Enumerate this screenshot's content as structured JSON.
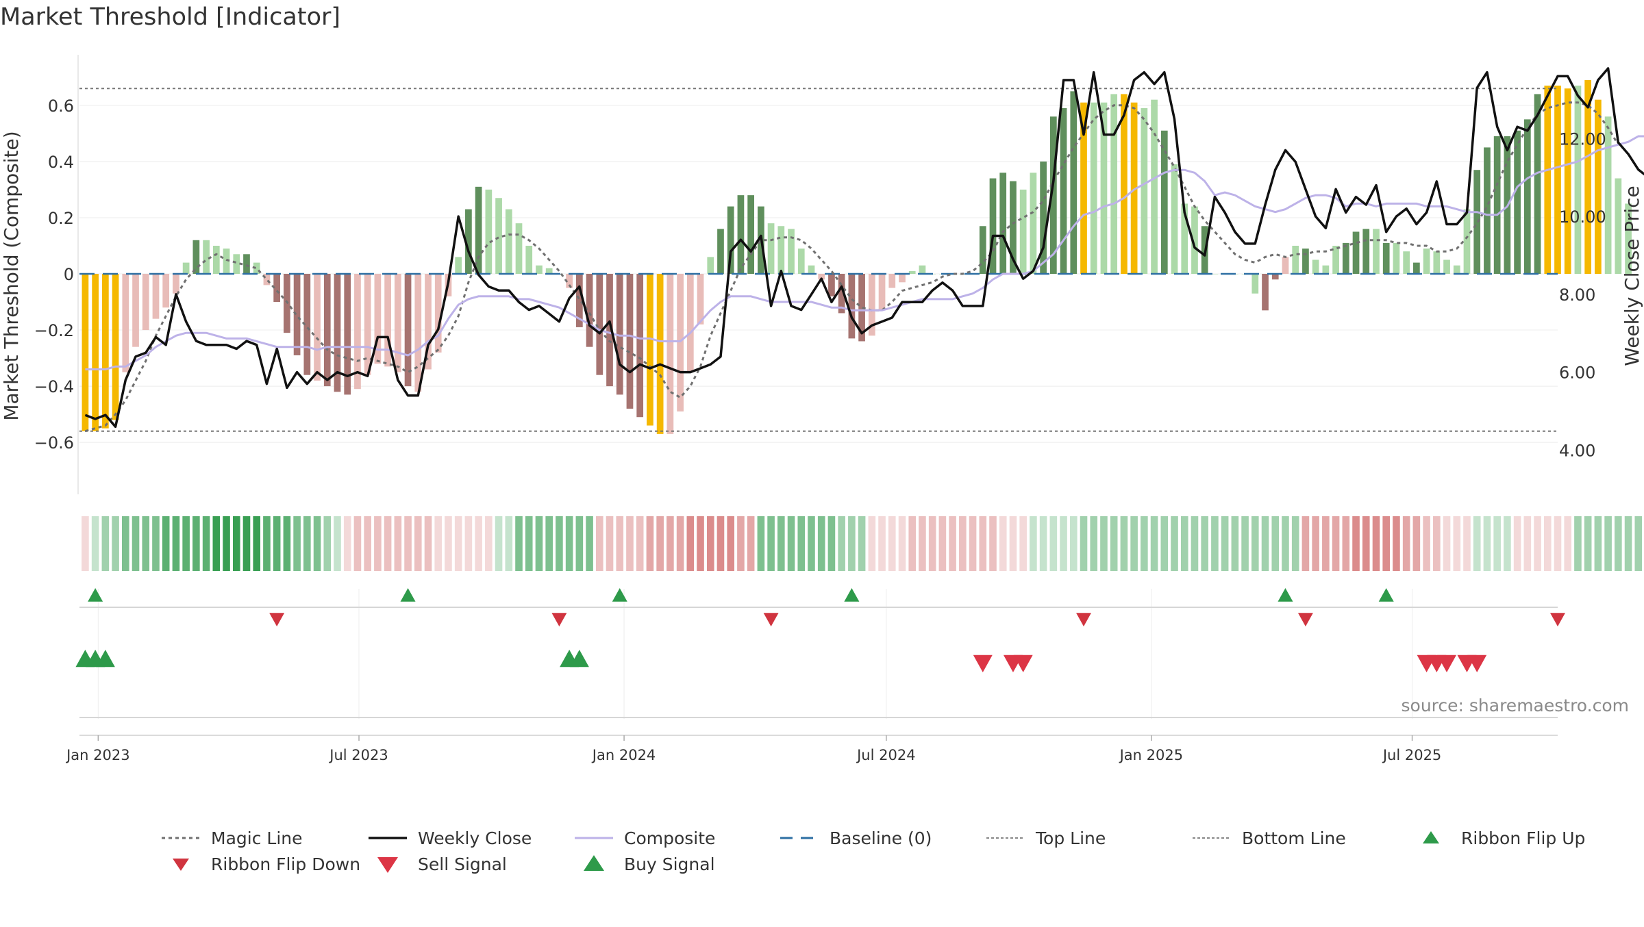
{
  "title": "Market Threshold [Indicator]",
  "source_text": "source: sharemaestro.com",
  "colors": {
    "gold": "#f5b800",
    "strong_green": "#5f8f5c",
    "light_green": "#acd9a8",
    "strong_red": "#a67370",
    "light_red": "#e8bcb8",
    "close_line": "#111111",
    "composite_line": "#bdb2e8",
    "magic_line": "#707070",
    "baseline": "#2d6fa3",
    "buy": "#2e9a4a",
    "sell": "#dc3545",
    "flip_up": "#2e9a4a",
    "flip_down": "#d0343f"
  },
  "chart_data": {
    "type": "bar",
    "title": "Market Threshold [Indicator]",
    "ylabel": "Market Threshold (Composite)",
    "y2label": "Weekly Close Price",
    "ylim": [
      -0.78,
      0.78
    ],
    "y2lim": [
      2.9,
      14.15
    ],
    "yticks": [
      -0.6,
      -0.4,
      -0.2,
      0,
      0.2,
      0.4,
      0.6
    ],
    "ytick_labels": [
      "−0.6",
      "−0.4",
      "−0.2",
      "0",
      "0.2",
      "0.4",
      "0.6"
    ],
    "y2ticks": [
      4,
      6,
      8,
      10,
      12
    ],
    "y2tick_labels": [
      "4.00",
      "6.00",
      "8.00",
      "10.00",
      "12.00"
    ],
    "xlim": [
      "2022-12-19",
      "2025-10-10"
    ],
    "xticks": [
      "2023-01-01",
      "2023-07-01",
      "2024-01-01",
      "2024-07-01",
      "2025-01-01",
      "2025-07-01"
    ],
    "xtick_labels": [
      "Jan 2023",
      "Jul 2023",
      "Jan 2024",
      "Jul 2024",
      "Jan 2025",
      "Jul 2025"
    ],
    "start_date": "2022-12-23",
    "top_line": 0.66,
    "bottom_line": -0.56,
    "baseline": 0,
    "legend": [
      {
        "label": "Magic Line",
        "style": "dotted-grey"
      },
      {
        "label": "Weekly Close",
        "style": "solid-black"
      },
      {
        "label": "Composite",
        "style": "solid-lavender"
      },
      {
        "label": "Baseline (0)",
        "style": "dashed-blue"
      },
      {
        "label": "Top Line",
        "style": "dashed-grey"
      },
      {
        "label": "Bottom Line",
        "style": "dashed-grey"
      },
      {
        "label": "Ribbon Flip Up",
        "style": "triangle-up-green"
      },
      {
        "label": "Ribbon Flip Down",
        "style": "triangle-down-red"
      },
      {
        "label": "Sell Signal",
        "style": "triangle-down-red-large"
      },
      {
        "label": "Buy Signal",
        "style": "triangle-up-green-large"
      }
    ],
    "legend_position": "bottom",
    "histogram": [
      -0.56,
      -0.56,
      -0.55,
      -0.52,
      -0.35,
      -0.26,
      -0.2,
      -0.16,
      -0.12,
      -0.07,
      0.04,
      0.12,
      0.12,
      0.1,
      0.09,
      0.07,
      0.07,
      0.04,
      -0.04,
      -0.1,
      -0.21,
      -0.29,
      -0.36,
      -0.38,
      -0.4,
      -0.42,
      -0.43,
      -0.41,
      -0.36,
      -0.32,
      -0.33,
      -0.35,
      -0.4,
      -0.42,
      -0.34,
      -0.28,
      -0.08,
      0.06,
      0.23,
      0.31,
      0.3,
      0.27,
      0.23,
      0.18,
      0.1,
      0.03,
      0.02,
      0.0,
      -0.05,
      -0.19,
      -0.26,
      -0.36,
      -0.4,
      -0.43,
      -0.48,
      -0.51,
      -0.54,
      -0.57,
      -0.57,
      -0.49,
      -0.35,
      -0.18,
      0.06,
      0.16,
      0.24,
      0.28,
      0.28,
      0.24,
      0.18,
      0.17,
      0.16,
      0.09,
      0.03,
      -0.02,
      -0.08,
      -0.14,
      -0.23,
      -0.24,
      -0.22,
      -0.13,
      -0.05,
      -0.03,
      0.01,
      0.03,
      0.0,
      0.0,
      0.0,
      0.0,
      0.0,
      0.17,
      0.34,
      0.36,
      0.33,
      0.3,
      0.36,
      0.4,
      0.56,
      0.59,
      0.65,
      0.61,
      0.61,
      0.61,
      0.64,
      0.64,
      0.61,
      0.59,
      0.62,
      0.51,
      0.39,
      0.25,
      0.24,
      0.17,
      0.0,
      0.0,
      0.0,
      0.0,
      -0.07,
      -0.13,
      -0.02,
      0.06,
      0.1,
      0.09,
      0.05,
      0.03,
      0.1,
      0.11,
      0.15,
      0.16,
      0.16,
      0.11,
      0.11,
      0.08,
      0.04,
      0.09,
      0.08,
      0.05,
      0.03,
      0.23,
      0.37,
      0.45,
      0.49,
      0.49,
      0.51,
      0.55,
      0.64,
      0.67,
      0.67,
      0.66,
      0.67,
      0.69,
      0.62,
      0.56,
      0.34,
      0.25
    ],
    "hist_colors": [
      "gold",
      "gold",
      "gold",
      "gold",
      "light_red",
      "light_red",
      "light_red",
      "light_red",
      "light_red",
      "light_red",
      "light_green",
      "strong_green",
      "light_green",
      "light_green",
      "light_green",
      "light_green",
      "strong_green",
      "light_green",
      "light_red",
      "strong_red",
      "strong_red",
      "strong_red",
      "strong_red",
      "light_red",
      "strong_red",
      "strong_red",
      "strong_red",
      "light_red",
      "light_red",
      "light_red",
      "light_red",
      "light_red",
      "strong_red",
      "light_red",
      "light_red",
      "light_red",
      "light_red",
      "light_green",
      "strong_green",
      "strong_green",
      "light_green",
      "light_green",
      "light_green",
      "light_green",
      "light_green",
      "light_green",
      "light_green",
      "light_green",
      "light_red",
      "strong_red",
      "strong_red",
      "strong_red",
      "strong_red",
      "strong_red",
      "strong_red",
      "strong_red",
      "gold",
      "gold",
      "light_red",
      "light_red",
      "light_red",
      "light_red",
      "light_green",
      "strong_green",
      "strong_green",
      "strong_green",
      "strong_green",
      "strong_green",
      "light_green",
      "light_green",
      "light_green",
      "light_green",
      "light_green",
      "light_red",
      "strong_red",
      "strong_red",
      "strong_red",
      "strong_red",
      "light_red",
      "light_red",
      "light_red",
      "light_red",
      "light_green",
      "light_green",
      "light_green",
      "light_green",
      "light_green",
      "light_green",
      "light_green",
      "strong_green",
      "strong_green",
      "strong_green",
      "strong_green",
      "light_green",
      "light_green",
      "strong_green",
      "strong_green",
      "strong_green",
      "strong_green",
      "gold",
      "light_green",
      "light_green",
      "light_green",
      "gold",
      "gold",
      "light_green",
      "light_green",
      "strong_green",
      "light_green",
      "light_green",
      "light_green",
      "strong_green",
      "light_green",
      "light_green",
      "light_green",
      "light_green",
      "light_green",
      "strong_red",
      "strong_red",
      "light_red",
      "light_green",
      "strong_green",
      "light_green",
      "light_green",
      "light_green",
      "strong_green",
      "strong_green",
      "strong_green",
      "light_green",
      "strong_green",
      "light_green",
      "light_green",
      "strong_green",
      "light_green",
      "light_green",
      "light_green",
      "light_green",
      "light_green",
      "strong_green",
      "strong_green",
      "strong_green",
      "strong_green",
      "strong_green",
      "strong_green",
      "strong_green",
      "gold",
      "gold",
      "gold",
      "light_green",
      "gold",
      "gold",
      "light_green",
      "light_green",
      "light_green",
      "light_green"
    ],
    "magic_line": [
      -0.56,
      -0.55,
      -0.54,
      -0.5,
      -0.45,
      -0.38,
      -0.31,
      -0.22,
      -0.15,
      -0.08,
      -0.02,
      0.02,
      0.05,
      0.07,
      0.05,
      0.04,
      0.03,
      0.02,
      -0.02,
      -0.06,
      -0.1,
      -0.15,
      -0.19,
      -0.23,
      -0.27,
      -0.29,
      -0.3,
      -0.31,
      -0.3,
      -0.31,
      -0.32,
      -0.33,
      -0.35,
      -0.33,
      -0.3,
      -0.27,
      -0.22,
      -0.15,
      -0.03,
      0.06,
      0.11,
      0.13,
      0.14,
      0.14,
      0.12,
      0.09,
      0.05,
      0.01,
      -0.04,
      -0.09,
      -0.14,
      -0.2,
      -0.24,
      -0.26,
      -0.28,
      -0.3,
      -0.33,
      -0.36,
      -0.42,
      -0.44,
      -0.4,
      -0.33,
      -0.22,
      -0.14,
      -0.06,
      0.02,
      0.07,
      0.12,
      0.12,
      0.13,
      0.13,
      0.12,
      0.09,
      0.05,
      0.01,
      -0.04,
      -0.09,
      -0.12,
      -0.13,
      -0.13,
      -0.1,
      -0.06,
      -0.05,
      -0.04,
      -0.03,
      -0.01,
      0.0,
      0.0,
      0.01,
      0.04,
      0.08,
      0.15,
      0.18,
      0.2,
      0.22,
      0.26,
      0.33,
      0.39,
      0.45,
      0.5,
      0.55,
      0.58,
      0.6,
      0.6,
      0.59,
      0.55,
      0.5,
      0.44,
      0.38,
      0.31,
      0.24,
      0.19,
      0.15,
      0.11,
      0.07,
      0.05,
      0.04,
      0.06,
      0.07,
      0.06,
      0.07,
      0.07,
      0.08,
      0.08,
      0.09,
      0.1,
      0.11,
      0.12,
      0.12,
      0.12,
      0.11,
      0.11,
      0.1,
      0.1,
      0.08,
      0.08,
      0.09,
      0.13,
      0.18,
      0.24,
      0.32,
      0.4,
      0.46,
      0.52,
      0.57,
      0.59,
      0.6,
      0.61,
      0.61,
      0.6,
      0.57,
      0.52,
      0.46
    ],
    "composite": [
      -0.34,
      -0.34,
      -0.34,
      -0.33,
      -0.33,
      -0.31,
      -0.29,
      -0.26,
      -0.24,
      -0.22,
      -0.21,
      -0.21,
      -0.21,
      -0.22,
      -0.23,
      -0.23,
      -0.23,
      -0.24,
      -0.25,
      -0.26,
      -0.26,
      -0.26,
      -0.26,
      -0.27,
      -0.26,
      -0.26,
      -0.26,
      -0.26,
      -0.26,
      -0.27,
      -0.27,
      -0.28,
      -0.29,
      -0.27,
      -0.24,
      -0.22,
      -0.16,
      -0.11,
      -0.09,
      -0.08,
      -0.08,
      -0.08,
      -0.08,
      -0.09,
      -0.09,
      -0.1,
      -0.11,
      -0.12,
      -0.14,
      -0.16,
      -0.18,
      -0.2,
      -0.21,
      -0.22,
      -0.22,
      -0.23,
      -0.23,
      -0.24,
      -0.24,
      -0.24,
      -0.21,
      -0.17,
      -0.13,
      -0.1,
      -0.08,
      -0.08,
      -0.08,
      -0.09,
      -0.1,
      -0.1,
      -0.1,
      -0.1,
      -0.1,
      -0.11,
      -0.12,
      -0.12,
      -0.13,
      -0.13,
      -0.13,
      -0.13,
      -0.12,
      -0.11,
      -0.1,
      -0.09,
      -0.09,
      -0.09,
      -0.09,
      -0.08,
      -0.07,
      -0.05,
      -0.02,
      0.0,
      0.0,
      0.0,
      0.01,
      0.04,
      0.07,
      0.12,
      0.17,
      0.21,
      0.22,
      0.24,
      0.25,
      0.27,
      0.3,
      0.32,
      0.34,
      0.36,
      0.37,
      0.37,
      0.36,
      0.33,
      0.28,
      0.29,
      0.28,
      0.26,
      0.24,
      0.23,
      0.22,
      0.23,
      0.25,
      0.27,
      0.28,
      0.28,
      0.27,
      0.24,
      0.25,
      0.25,
      0.24,
      0.25,
      0.25,
      0.25,
      0.25,
      0.24,
      0.24,
      0.24,
      0.23,
      0.22,
      0.22,
      0.21,
      0.21,
      0.24,
      0.31,
      0.34,
      0.36,
      0.37,
      0.38,
      0.39,
      0.4,
      0.42,
      0.44,
      0.45,
      0.46,
      0.47,
      0.49,
      0.49,
      0.49,
      0.48,
      0.46
    ],
    "weekly_close": [
      4.9,
      4.8,
      4.9,
      4.6,
      5.8,
      6.4,
      6.5,
      6.9,
      6.7,
      8.0,
      7.3,
      6.8,
      6.7,
      6.7,
      6.7,
      6.6,
      6.8,
      6.7,
      5.7,
      6.6,
      5.6,
      6.0,
      5.7,
      6.0,
      5.8,
      6.0,
      5.9,
      6.0,
      5.9,
      6.9,
      6.9,
      5.8,
      5.4,
      5.4,
      6.7,
      7.1,
      8.3,
      10.0,
      9.1,
      8.5,
      8.2,
      8.1,
      8.1,
      7.8,
      7.6,
      7.7,
      7.5,
      7.3,
      7.9,
      8.2,
      7.2,
      7.0,
      7.3,
      6.2,
      6.0,
      6.2,
      6.1,
      6.2,
      6.1,
      6.0,
      6.0,
      6.1,
      6.2,
      6.4,
      9.1,
      9.4,
      9.1,
      9.5,
      7.7,
      8.6,
      7.7,
      7.6,
      8.0,
      8.4,
      7.8,
      8.2,
      7.4,
      7.0,
      7.2,
      7.3,
      7.4,
      7.8,
      7.8,
      7.8,
      8.1,
      8.3,
      8.1,
      7.7,
      7.7,
      7.7,
      9.5,
      9.5,
      8.9,
      8.4,
      8.6,
      9.2,
      10.9,
      13.5,
      13.5,
      12.1,
      13.7,
      12.1,
      12.1,
      12.6,
      13.5,
      13.7,
      13.4,
      13.7,
      12.5,
      10.1,
      9.2,
      9.0,
      10.5,
      10.1,
      9.6,
      9.3,
      9.3,
      10.3,
      11.2,
      11.7,
      11.4,
      10.7,
      10.0,
      9.7,
      10.7,
      10.1,
      10.5,
      10.3,
      10.8,
      9.6,
      10.0,
      10.2,
      9.8,
      10.1,
      10.9,
      9.8,
      9.8,
      10.1,
      13.3,
      13.7,
      12.3,
      11.7,
      12.3,
      12.2,
      12.6,
      13.1,
      13.6,
      13.6,
      13.1,
      12.8,
      13.5,
      13.8,
      11.9,
      11.6,
      11.2,
      11.0
    ],
    "ribbon_score": [
      -1,
      1,
      2,
      2,
      3,
      3,
      3,
      3,
      4,
      4,
      4,
      4,
      4,
      5,
      5,
      5,
      5,
      5,
      4,
      4,
      4,
      3,
      3,
      3,
      2,
      1,
      -1,
      -2,
      -2,
      -2,
      -2,
      -2,
      -2,
      -2,
      -2,
      -1,
      -1,
      -1,
      -1,
      -1,
      -1,
      1,
      1,
      3,
      3,
      3,
      3,
      3,
      3,
      3,
      3,
      -2,
      -2,
      -2,
      -2,
      -2,
      -3,
      -3,
      -3,
      -3,
      -4,
      -4,
      -4,
      -4,
      -4,
      -3,
      -3,
      3,
      3,
      3,
      3,
      3,
      3,
      3,
      3,
      2,
      2,
      2,
      -1,
      -1,
      -1,
      -1,
      -2,
      -2,
      -2,
      -2,
      -2,
      -2,
      -2,
      -2,
      -2,
      -1,
      -1,
      -1,
      1,
      1,
      1,
      1,
      1,
      2,
      2,
      2,
      2,
      2,
      2,
      2,
      2,
      2,
      2,
      2,
      2,
      2,
      2,
      2,
      2,
      2,
      2,
      2,
      2,
      2,
      2,
      -3,
      -3,
      -3,
      -3,
      -3,
      -4,
      -4,
      -4,
      -4,
      -4,
      -3,
      -3,
      -2,
      -2,
      -1,
      -1,
      -1,
      1,
      1,
      1,
      1,
      -1,
      -1,
      -1,
      -1,
      -1,
      -1,
      2,
      2,
      2,
      2,
      2,
      2,
      2,
      2,
      2,
      2,
      2,
      2,
      2,
      2,
      2,
      2,
      2,
      2,
      2
    ],
    "ribbon_flip_up": [
      "2022-12-30",
      "2023-08-04",
      "2023-12-29",
      "2024-06-07",
      "2025-04-04",
      "2025-06-13"
    ],
    "ribbon_flip_down": [
      "2023-05-05",
      "2023-11-17",
      "2024-04-12",
      "2024-11-15",
      "2025-04-18",
      "2025-10-10"
    ],
    "buy_signals": [
      "2022-12-23",
      "2022-12-30",
      "2023-01-06",
      "2023-11-24",
      "2023-12-01"
    ],
    "sell_signals": [
      "2024-09-06",
      "2024-09-27",
      "2024-10-04",
      "2025-07-11",
      "2025-07-18",
      "2025-07-25",
      "2025-08-08",
      "2025-08-15"
    ]
  }
}
